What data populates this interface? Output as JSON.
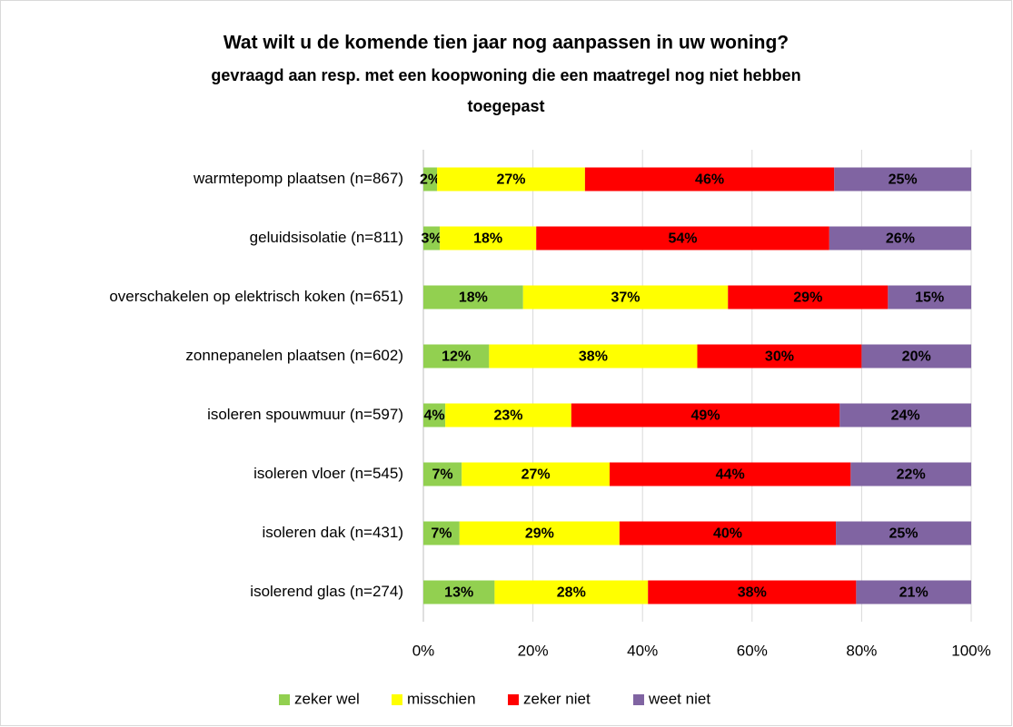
{
  "chart_data": {
    "type": "stacked_barh",
    "title": "Wat wilt u de komende tien jaar nog aanpassen in uw woning?",
    "subtitle": [
      "gevraagd aan resp. met een koopwoning die een maatregel nog niet hebben",
      "toegepast"
    ],
    "categories": [
      "warmtepomp plaatsen (n=867)",
      "geluidsisolatie (n=811)",
      "overschakelen op elektrisch koken (n=651)",
      "zonnepanelen plaatsen (n=602)",
      "isoleren spouwmuur (n=597)",
      "isoleren vloer (n=545)",
      "isoleren dak (n=431)",
      "isolerend glas (n=274)"
    ],
    "series": [
      {
        "name": "zeker wel",
        "color": "#92d050",
        "values": [
          2.5,
          3,
          18.2,
          12,
          4,
          7,
          6.6,
          13
        ],
        "value_labels": [
          "2%",
          "3%",
          "18%",
          "12%",
          "4%",
          "7%",
          "7%",
          "13%"
        ]
      },
      {
        "name": "misschien",
        "color": "#ffff00",
        "values": [
          27,
          17.6,
          37.4,
          38,
          23,
          27,
          29.2,
          28
        ],
        "value_labels": [
          "27%",
          "18%",
          "37%",
          "38%",
          "23%",
          "27%",
          "29%",
          "28%"
        ]
      },
      {
        "name": "zeker niet",
        "color": "#ff0000",
        "values": [
          45.5,
          53.5,
          29.2,
          30,
          49,
          44,
          39.5,
          38
        ],
        "value_labels": [
          "46%",
          "54%",
          "29%",
          "30%",
          "49%",
          "44%",
          "40%",
          "38%"
        ]
      },
      {
        "name": "weet niet",
        "color": "#8064a2",
        "values": [
          25,
          25.9,
          15.2,
          20,
          24,
          22,
          24.7,
          21
        ],
        "value_labels": [
          "25%",
          "26%",
          "15%",
          "20%",
          "24%",
          "22%",
          "25%",
          "21%"
        ]
      }
    ],
    "xlim": [
      0,
      100
    ],
    "xticks": [
      {
        "value": 0,
        "label": "0%"
      },
      {
        "value": 20,
        "label": "20%"
      },
      {
        "value": 40,
        "label": "40%"
      },
      {
        "value": 60,
        "label": "60%"
      },
      {
        "value": 80,
        "label": "80%"
      },
      {
        "value": 100,
        "label": "100%"
      }
    ],
    "grid": true,
    "legend": "bottom"
  }
}
